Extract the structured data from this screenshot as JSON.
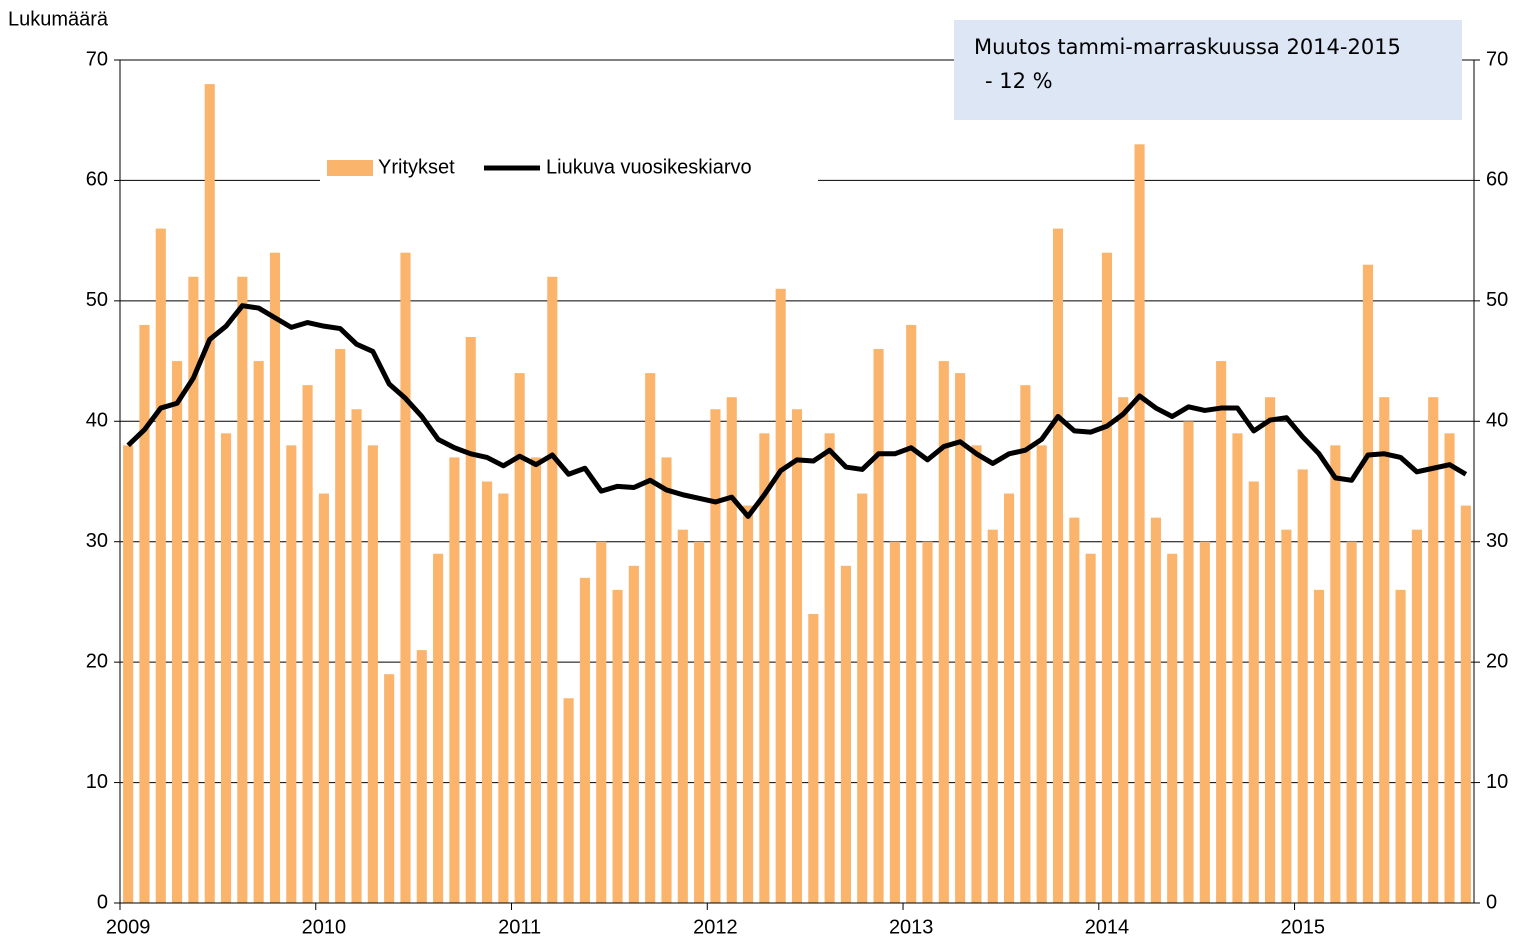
{
  "chart_data": {
    "type": "bar",
    "ylabel": "Lukumäärä",
    "annotations": [
      "Muutos tammi-marraskuussa 2014-2015",
      "- 12 %"
    ],
    "categories": [
      "2009",
      null,
      null,
      null,
      null,
      null,
      null,
      null,
      null,
      null,
      null,
      null,
      "2010",
      null,
      null,
      null,
      null,
      null,
      null,
      null,
      null,
      null,
      null,
      null,
      "2011",
      null,
      null,
      null,
      null,
      null,
      null,
      null,
      null,
      null,
      null,
      null,
      "2012",
      null,
      null,
      null,
      null,
      null,
      null,
      null,
      null,
      null,
      null,
      null,
      "2013",
      null,
      null,
      null,
      null,
      null,
      null,
      null,
      null,
      null,
      null,
      null,
      "2014",
      null,
      null,
      null,
      null,
      null,
      null,
      null,
      null,
      null,
      null,
      null,
      "2015",
      null,
      null,
      null,
      null,
      null,
      null,
      null,
      null,
      null,
      null
    ],
    "series": [
      {
        "name": "Yritykset",
        "type": "bar",
        "color": "#fab46c",
        "values": [
          38,
          48,
          56,
          45,
          52,
          68,
          39,
          52,
          45,
          54,
          38,
          43,
          34,
          46,
          41,
          38,
          19,
          54,
          21,
          29,
          37,
          47,
          35,
          34,
          44,
          37,
          52,
          17,
          27,
          30,
          26,
          28,
          44,
          37,
          31,
          30,
          41,
          42,
          33,
          39,
          51,
          41,
          24,
          39,
          28,
          34,
          46,
          30,
          48,
          30,
          45,
          44,
          38,
          31,
          34,
          43,
          38,
          56,
          32,
          29,
          54,
          42,
          63,
          32,
          29,
          40,
          30,
          45,
          39,
          35,
          42,
          31,
          36,
          26,
          38,
          30,
          53,
          42,
          26,
          31,
          42,
          39,
          33
        ]
      },
      {
        "name": "Liukuva vuosikeskiarvo",
        "type": "line",
        "color": "#000000",
        "values": [
          38,
          39.3,
          41.1,
          41.5,
          43.6,
          46.8,
          47.9,
          49.6,
          49.4,
          48.6,
          47.8,
          48.2,
          47.9,
          47.7,
          46.4,
          45.8,
          43.1,
          41.9,
          40.4,
          38.5,
          37.8,
          37.3,
          37,
          36.3,
          37.1,
          36.4,
          37.2,
          35.6,
          36.1,
          34.2,
          34.6,
          34.5,
          35.1,
          34.3,
          33.9,
          33.6,
          33.3,
          33.7,
          32.1,
          33.9,
          35.9,
          36.8,
          36.7,
          37.6,
          36.2,
          36,
          37.3,
          37.3,
          37.8,
          36.8,
          37.9,
          38.3,
          37.3,
          36.5,
          37.3,
          37.6,
          38.5,
          40.4,
          39.2,
          39.1,
          39.6,
          40.6,
          42.1,
          41.1,
          40.4,
          41.2,
          40.9,
          41.1,
          41.1,
          39.2,
          40.1,
          40.3,
          38.7,
          37.3,
          35.3,
          35.1,
          37.2,
          37.3,
          37,
          35.8,
          36.1,
          36.4,
          35.6
        ]
      }
    ],
    "ylim": [
      0,
      70
    ],
    "yticks": [
      0,
      10,
      20,
      30,
      40,
      50,
      60,
      70
    ],
    "y2lim": [
      0,
      70
    ],
    "y2ticks": [
      0,
      10,
      20,
      30,
      40,
      50,
      60,
      70
    ],
    "grid": true
  }
}
